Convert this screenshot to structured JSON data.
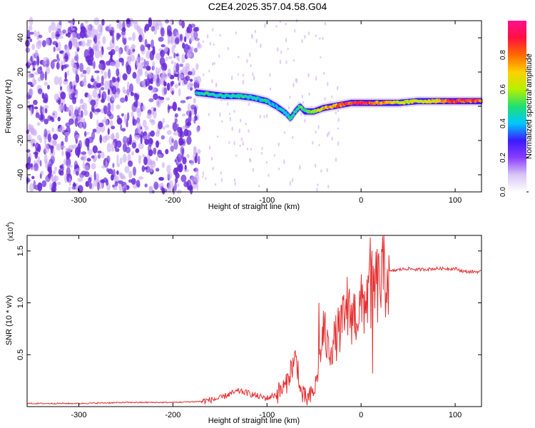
{
  "title": "C2E4.2025.357.04.58.G04",
  "colors": {
    "line": "#e53030",
    "axis": "#000000",
    "background": "#ffffff",
    "blob": "#6a2bd9",
    "blob_light": "#c9a8f2"
  },
  "chart_data": [
    {
      "type": "heatmap",
      "title": "C2E4.2025.357.04.58.G04",
      "xlabel": "Height of straight line (km)",
      "ylabel": "Frequency (Hz)",
      "xlim": [
        -355,
        128
      ],
      "ylim": [
        -50,
        50
      ],
      "xticks": [
        -300,
        -200,
        -100,
        0,
        100
      ],
      "yticks": [
        -40,
        -20,
        0,
        20,
        40
      ],
      "colorbar": {
        "label": "Normalized spectral amplitude",
        "range": [
          0,
          1
        ],
        "ticks": [
          0.0,
          0.2,
          0.4,
          0.6,
          0.8
        ],
        "tick_labels": [
          "0.0",
          "0.2",
          "0.4",
          "0.6",
          "0.8"
        ],
        "colormap": [
          "#ffffff",
          "#d8c6f5",
          "#8b3dff",
          "#3a1aff",
          "#00c8ff",
          "#20e070",
          "#b6f000",
          "#ffd000",
          "#ff6a00",
          "#ff1040",
          "#ff1090"
        ]
      },
      "ridge": {
        "name": "dominant frequency track",
        "x": [
          -175,
          -160,
          -145,
          -130,
          -115,
          -100,
          -90,
          -80,
          -75,
          -70,
          -65,
          -60,
          -50,
          -40,
          -30,
          -20,
          -10,
          0,
          20,
          40,
          60,
          80,
          100,
          128
        ],
        "y": [
          8,
          7,
          6,
          6,
          5,
          3,
          0,
          -4,
          -7,
          -3,
          0,
          -3,
          -3,
          -1,
          0,
          1,
          2,
          2,
          2,
          2,
          3,
          3,
          3,
          3
        ],
        "amplitude": [
          0.45,
          0.5,
          0.45,
          0.5,
          0.45,
          0.45,
          0.4,
          0.45,
          0.5,
          0.5,
          0.5,
          0.55,
          0.6,
          0.7,
          0.8,
          0.85,
          0.9,
          0.95,
          0.8,
          0.65,
          0.65,
          0.7,
          0.9,
          0.85
        ]
      },
      "noise_region": {
        "x_range": [
          -355,
          -172
        ],
        "amplitude": 0.12
      }
    },
    {
      "type": "line",
      "xlabel": "Height of straight line (km)",
      "ylabel": "SNR (10 * v/v)",
      "exponent_label": "(x10",
      "exponent_power": "4",
      "exponent_close": ")",
      "xlim": [
        -355,
        128
      ],
      "ylim": [
        0,
        1.65
      ],
      "xticks": [
        -300,
        -200,
        -100,
        0,
        100
      ],
      "yticks": [
        0.5,
        1.0,
        1.5
      ],
      "ytick_labels": [
        "0.5",
        "1.0",
        "1.5"
      ],
      "series": [
        {
          "name": "SNR",
          "x": [
            -355,
            -300,
            -250,
            -200,
            -170,
            -150,
            -140,
            -130,
            -120,
            -110,
            -100,
            -90,
            -80,
            -75,
            -70,
            -67,
            -65,
            -60,
            -55,
            -50,
            -45,
            -40,
            -35,
            -30,
            -25,
            -20,
            -15,
            -10,
            -5,
            0,
            5,
            10,
            15,
            20,
            25,
            30,
            40,
            50,
            60,
            80,
            100,
            110,
            128
          ],
          "y": [
            0.03,
            0.03,
            0.04,
            0.04,
            0.05,
            0.08,
            0.12,
            0.15,
            0.13,
            0.1,
            0.08,
            0.12,
            0.2,
            0.35,
            0.45,
            0.38,
            0.15,
            0.08,
            0.08,
            0.15,
            0.35,
            0.75,
            0.55,
            0.6,
            0.7,
            0.8,
            0.85,
            0.9,
            0.88,
            0.95,
            1.05,
            1.1,
            1.15,
            1.2,
            1.25,
            1.3,
            1.32,
            1.33,
            1.32,
            1.33,
            1.33,
            1.3,
            1.3
          ],
          "spikes": [
            {
              "x": 10,
              "y": 1.63
            },
            {
              "x": 12,
              "y": 0.32
            },
            {
              "x": -15,
              "y": 1.25
            },
            {
              "x": -45,
              "y": 1.0
            },
            {
              "x": 18,
              "y": 1.45
            }
          ]
        }
      ]
    }
  ]
}
